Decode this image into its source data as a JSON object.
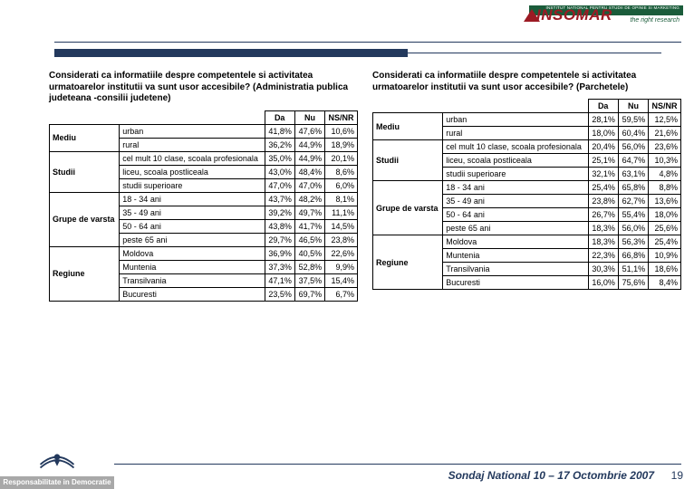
{
  "header": {
    "brand": "INSOMAR",
    "institute": "INSTITUT NATIONAL PENTRU STUDII DE OPINIE SI MARKETING",
    "tagline": "the right research"
  },
  "footer": {
    "badge_label": "Responsabilitate in Democratie",
    "text": "Sondaj National 10 – 17 Octombrie  2007",
    "page": "19"
  },
  "columns": [
    "Da",
    "Nu",
    "NS/NR"
  ],
  "groups": [
    {
      "name": "Mediu",
      "rows": [
        "urban",
        "rural"
      ]
    },
    {
      "name": "Studii",
      "rows": [
        "cel mult 10 clase, scoala profesionala",
        "liceu, scoala postliceala",
        "studii superioare"
      ]
    },
    {
      "name": "Grupe de varsta",
      "rows": [
        "18 - 34 ani",
        "35 - 49 ani",
        "50 - 64 ani",
        "peste 65 ani"
      ]
    },
    {
      "name": "Regiune",
      "rows": [
        "Moldova",
        "Muntenia",
        "Transilvania",
        "Bucuresti"
      ]
    }
  ],
  "left": {
    "question": "Considerati ca  informatiile despre competentele si activitatea urmatoarelor institutii va sunt usor accesibile? (Administratia publica judeteana -consilii judetene)",
    "data": [
      [
        "41,8%",
        "47,6%",
        "10,6%"
      ],
      [
        "36,2%",
        "44,9%",
        "18,9%"
      ],
      [
        "35,0%",
        "44,9%",
        "20,1%"
      ],
      [
        "43,0%",
        "48,4%",
        "8,6%"
      ],
      [
        "47,0%",
        "47,0%",
        "6,0%"
      ],
      [
        "43,7%",
        "48,2%",
        "8,1%"
      ],
      [
        "39,2%",
        "49,7%",
        "11,1%"
      ],
      [
        "43,8%",
        "41,7%",
        "14,5%"
      ],
      [
        "29,7%",
        "46,5%",
        "23,8%"
      ],
      [
        "36,9%",
        "40,5%",
        "22,6%"
      ],
      [
        "37,3%",
        "52,8%",
        "9,9%"
      ],
      [
        "47,1%",
        "37,5%",
        "15,4%"
      ],
      [
        "23,5%",
        "69,7%",
        "6,7%"
      ]
    ]
  },
  "right": {
    "question": "Considerati ca  informatiile despre competentele si activitatea urmatoarelor institutii va sunt usor accesibile? (Parchetele)",
    "data": [
      [
        "28,1%",
        "59,5%",
        "12,5%"
      ],
      [
        "18,0%",
        "60,4%",
        "21,6%"
      ],
      [
        "20,4%",
        "56,0%",
        "23,6%"
      ],
      [
        "25,1%",
        "64,7%",
        "10,3%"
      ],
      [
        "32,1%",
        "63,1%",
        "4,8%"
      ],
      [
        "25,4%",
        "65,8%",
        "8,8%"
      ],
      [
        "23,8%",
        "62,7%",
        "13,6%"
      ],
      [
        "26,7%",
        "55,4%",
        "18,0%"
      ],
      [
        "18,3%",
        "56,0%",
        "25,6%"
      ],
      [
        "18,3%",
        "56,3%",
        "25,4%"
      ],
      [
        "22,3%",
        "66,8%",
        "10,9%"
      ],
      [
        "30,3%",
        "51,1%",
        "18,6%"
      ],
      [
        "16,0%",
        "75,6%",
        "8,4%"
      ]
    ]
  }
}
